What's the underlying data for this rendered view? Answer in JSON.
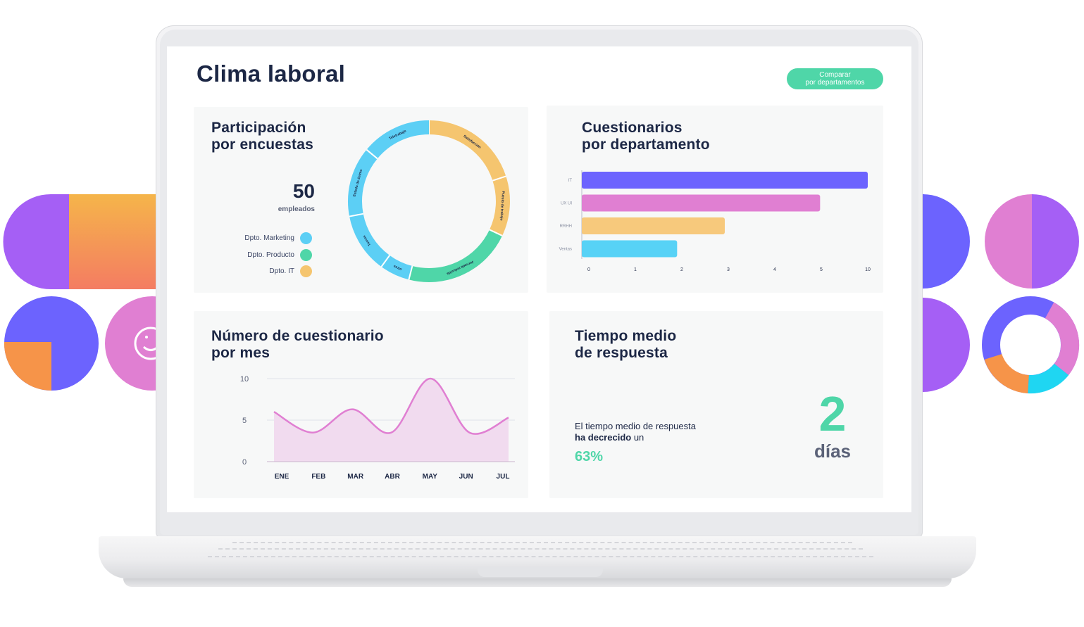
{
  "page": {
    "title": "Clima laboral",
    "compare_button": {
      "line1": "Comparar",
      "line2": "por departamentos"
    }
  },
  "participation": {
    "title_line1": "Participación",
    "title_line2": "por encuestas",
    "count": "50",
    "count_label": "empleados",
    "legend": [
      {
        "label": "Dpto. Marketing",
        "color": "#5ccff5"
      },
      {
        "label": "Dpto. Producto",
        "color": "#4fd6a8"
      },
      {
        "label": "Dpto. IT",
        "color": "#f5c56f"
      }
    ],
    "donut_segments": [
      {
        "label": "Satisfacción",
        "value": 20,
        "color": "#f5c56f"
      },
      {
        "label": "Puesto de trabajo",
        "value": 12,
        "color": "#f5c56f"
      },
      {
        "label": "Jornada reducida",
        "value": 22,
        "color": "#4fd6a8"
      },
      {
        "label": "otros",
        "value": 6,
        "color": "#5ccff5"
      },
      {
        "label": "Turnos",
        "value": 12,
        "color": "#5ccff5"
      },
      {
        "label": "Estado de ánimo",
        "value": 14,
        "color": "#5ccff5"
      },
      {
        "label": "Teletrabajo",
        "value": 14,
        "color": "#5ccff5"
      }
    ]
  },
  "departments": {
    "title_line1": "Cuestionarios",
    "title_line2": "por departamento"
  },
  "monthly": {
    "title_line1": "Número de cuestionario",
    "title_line2": "por mes"
  },
  "response_time": {
    "title_line1": "Tiempo medio",
    "title_line2": "de respuesta",
    "text_line1": "El tiempo medio de respuesta",
    "text_bold": "ha decrecido",
    "text_after": " un",
    "percent": "63%",
    "value": "2",
    "unit": "días"
  },
  "chart_data": [
    {
      "type": "bar",
      "orientation": "horizontal",
      "categories": [
        "IT",
        "UX UI",
        "RRHH",
        "Ventas"
      ],
      "values": [
        10,
        5,
        3,
        2
      ],
      "x_ticks": [
        "0",
        "1",
        "2",
        "3",
        "4",
        "5",
        "10"
      ],
      "colors": [
        "#6c63fe",
        "#e07fd2",
        "#f7c97c",
        "#57d2f6"
      ],
      "title": "Cuestionarios por departamento"
    },
    {
      "type": "area",
      "categories": [
        "ENE",
        "FEB",
        "MAR",
        "ABR",
        "MAY",
        "JUN",
        "JUL"
      ],
      "values": [
        6,
        3.5,
        6.3,
        3.5,
        10,
        3.5,
        5.3
      ],
      "ylim": [
        0,
        10
      ],
      "y_ticks": [
        "0",
        "5",
        "10"
      ],
      "color": "#e07fd2",
      "title": "Número de cuestionario por mes"
    }
  ]
}
